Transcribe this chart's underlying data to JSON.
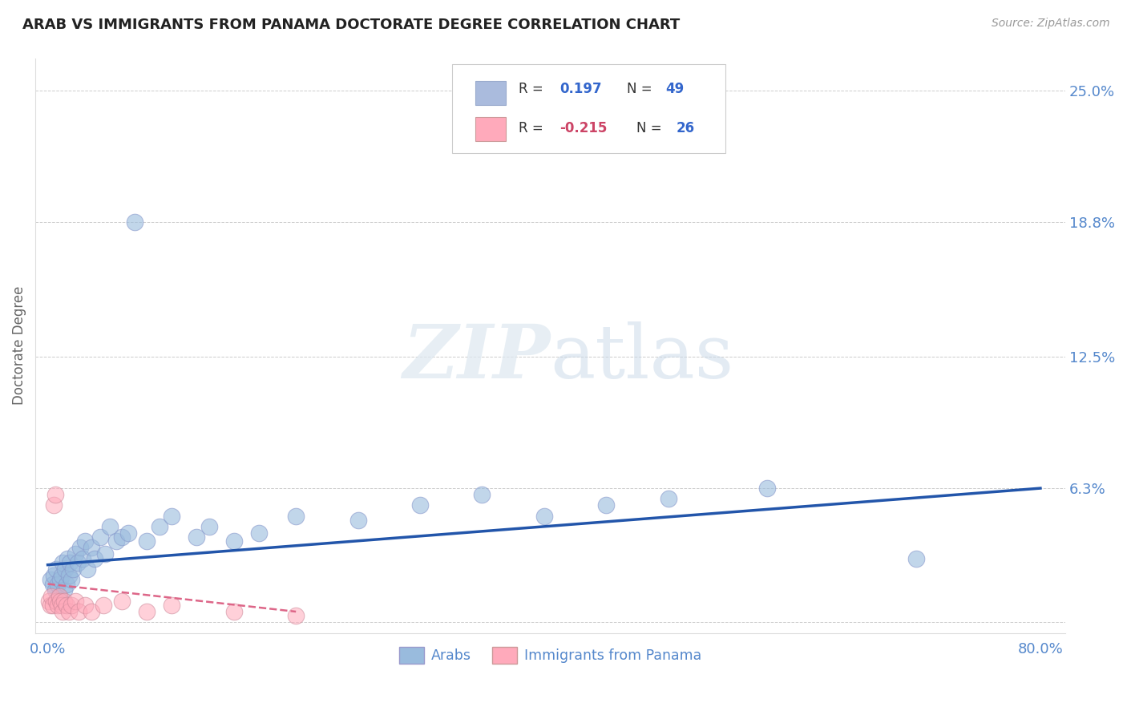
{
  "title": "ARAB VS IMMIGRANTS FROM PANAMA DOCTORATE DEGREE CORRELATION CHART",
  "source": "Source: ZipAtlas.com",
  "ylabel": "Doctorate Degree",
  "xlim": [
    -0.01,
    0.82
  ],
  "ylim": [
    -0.005,
    0.265
  ],
  "xticks": [
    0.0,
    0.2,
    0.4,
    0.6,
    0.8
  ],
  "xticklabels": [
    "0.0%",
    "",
    "",
    "",
    "80.0%"
  ],
  "ytick_values_right": [
    0.25,
    0.188,
    0.125,
    0.063,
    0.0
  ],
  "ytick_labels_right": [
    "25.0%",
    "18.8%",
    "12.5%",
    "6.3%",
    ""
  ],
  "grid_color": "#cccccc",
  "background_color": "#ffffff",
  "legend_R1": "0.197",
  "legend_N1": "49",
  "legend_R2": "-0.215",
  "legend_N2": "26",
  "legend_color1": "#aabbdd",
  "legend_color2": "#ffaabb",
  "arab_color": "#99bbdd",
  "panama_color": "#ffaabb",
  "arab_trend_color": "#2255aa",
  "panama_trend_color": "#dd6688",
  "watermark": "ZIPatlas",
  "arab_x": [
    0.002,
    0.004,
    0.005,
    0.006,
    0.007,
    0.008,
    0.009,
    0.01,
    0.011,
    0.012,
    0.013,
    0.014,
    0.015,
    0.016,
    0.017,
    0.018,
    0.019,
    0.02,
    0.022,
    0.024,
    0.026,
    0.028,
    0.03,
    0.032,
    0.035,
    0.038,
    0.042,
    0.046,
    0.05,
    0.055,
    0.06,
    0.065,
    0.07,
    0.08,
    0.09,
    0.1,
    0.12,
    0.13,
    0.15,
    0.17,
    0.2,
    0.25,
    0.3,
    0.35,
    0.4,
    0.45,
    0.5,
    0.58,
    0.7
  ],
  "arab_y": [
    0.02,
    0.018,
    0.022,
    0.015,
    0.025,
    0.018,
    0.012,
    0.02,
    0.022,
    0.028,
    0.015,
    0.025,
    0.018,
    0.03,
    0.022,
    0.028,
    0.02,
    0.025,
    0.032,
    0.028,
    0.035,
    0.03,
    0.038,
    0.025,
    0.035,
    0.03,
    0.04,
    0.032,
    0.045,
    0.038,
    0.04,
    0.042,
    0.188,
    0.038,
    0.045,
    0.05,
    0.04,
    0.045,
    0.038,
    0.042,
    0.05,
    0.048,
    0.055,
    0.06,
    0.05,
    0.055,
    0.058,
    0.063,
    0.03
  ],
  "panama_x": [
    0.001,
    0.002,
    0.003,
    0.004,
    0.005,
    0.006,
    0.007,
    0.008,
    0.009,
    0.01,
    0.011,
    0.012,
    0.013,
    0.015,
    0.017,
    0.019,
    0.022,
    0.025,
    0.03,
    0.035,
    0.045,
    0.06,
    0.08,
    0.1,
    0.15,
    0.2
  ],
  "panama_y": [
    0.01,
    0.008,
    0.012,
    0.008,
    0.055,
    0.06,
    0.01,
    0.008,
    0.012,
    0.01,
    0.008,
    0.005,
    0.01,
    0.008,
    0.005,
    0.008,
    0.01,
    0.005,
    0.008,
    0.005,
    0.008,
    0.01,
    0.005,
    0.008,
    0.005,
    0.003
  ],
  "arab_trend_x": [
    0.0,
    0.8
  ],
  "arab_trend_y": [
    0.027,
    0.063
  ],
  "panama_trend_x": [
    0.0,
    0.2
  ],
  "panama_trend_y": [
    0.018,
    0.005
  ]
}
